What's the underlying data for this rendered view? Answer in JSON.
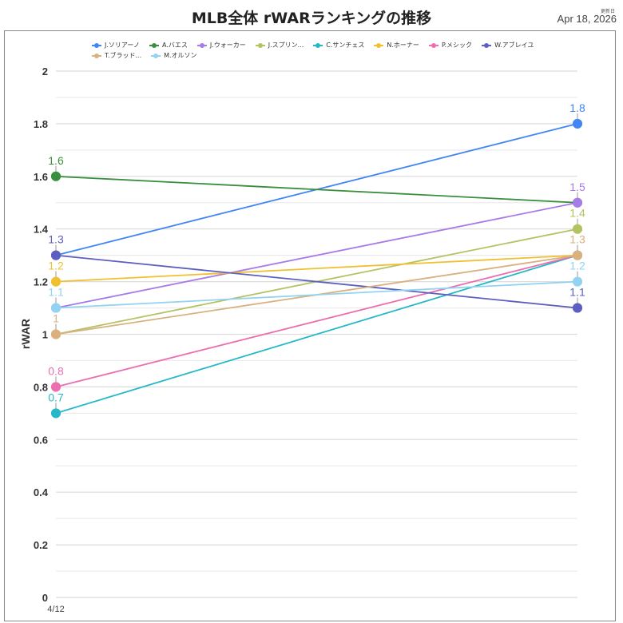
{
  "header": {
    "title": "MLB全体 rWARランキングの推移",
    "updated_label": "更新日",
    "updated_date": "Apr 18, 2026"
  },
  "chart_data": {
    "type": "line",
    "title": "MLB全体 rWARランキングの推移",
    "xlabel": "",
    "ylabel": "rWAR",
    "ylim": [
      0,
      2
    ],
    "yticks": [
      "0",
      "0.2",
      "0.4",
      "0.6",
      "0.8",
      "1",
      "1.2",
      "1.4",
      "1.6",
      "1.8",
      "2"
    ],
    "grid": true,
    "legend_position": "top",
    "x": [
      "4/12",
      ""
    ],
    "x_tick_labels_visible": [
      "4/12"
    ],
    "series": [
      {
        "name": "J.ソリアーノ",
        "color": "#4285F4",
        "values": [
          1.3,
          1.8
        ]
      },
      {
        "name": "A.バエス",
        "color": "#3A8F3E",
        "values": [
          1.6,
          1.5
        ]
      },
      {
        "name": "J.ウォーカー",
        "color": "#A77BE8",
        "values": [
          1.1,
          1.5
        ]
      },
      {
        "name": "J.スプリン...",
        "color": "#B5C263",
        "values": [
          1.0,
          1.4
        ]
      },
      {
        "name": "C.サンチェス",
        "color": "#26B8C9",
        "values": [
          0.7,
          1.3
        ]
      },
      {
        "name": "N.ホーナー",
        "color": "#F0C030",
        "values": [
          1.2,
          1.3
        ]
      },
      {
        "name": "P.メシック",
        "color": "#EB6FAE",
        "values": [
          0.8,
          1.3
        ]
      },
      {
        "name": "W.アブレイユ",
        "color": "#5C5FBF",
        "values": [
          1.3,
          1.1
        ]
      },
      {
        "name": "T.ブラッド...",
        "color": "#D9B07E",
        "values": [
          1.0,
          1.3
        ]
      },
      {
        "name": "M.オルソン",
        "color": "#93D3F2",
        "values": [
          1.1,
          1.2
        ]
      }
    ],
    "data_labels": {
      "left": [
        {
          "text": "1.6",
          "color": "#3A8F3E",
          "value": 1.6
        },
        {
          "text": "1.3",
          "color": "#5C5FBF",
          "value": 1.3
        },
        {
          "text": "1.2",
          "color": "#F0C030",
          "value": 1.2
        },
        {
          "text": "1.1",
          "color": "#93D3F2",
          "value": 1.1
        },
        {
          "text": "1",
          "color": "#D9B07E",
          "value": 1.0
        },
        {
          "text": "0.8",
          "color": "#EB6FAE",
          "value": 0.8
        },
        {
          "text": "0.7",
          "color": "#26B8C9",
          "value": 0.7
        }
      ],
      "right": [
        {
          "text": "1.8",
          "color": "#4285F4",
          "value": 1.8
        },
        {
          "text": "1.5",
          "color": "#A77BE8",
          "value": 1.5
        },
        {
          "text": "1.4",
          "color": "#B5C263",
          "value": 1.4
        },
        {
          "text": "1.3",
          "color": "#D9B07E",
          "value": 1.3
        },
        {
          "text": "1.2",
          "color": "#93D3F2",
          "value": 1.2
        },
        {
          "text": "1.1",
          "color": "#5C5FBF",
          "value": 1.1
        }
      ]
    }
  }
}
